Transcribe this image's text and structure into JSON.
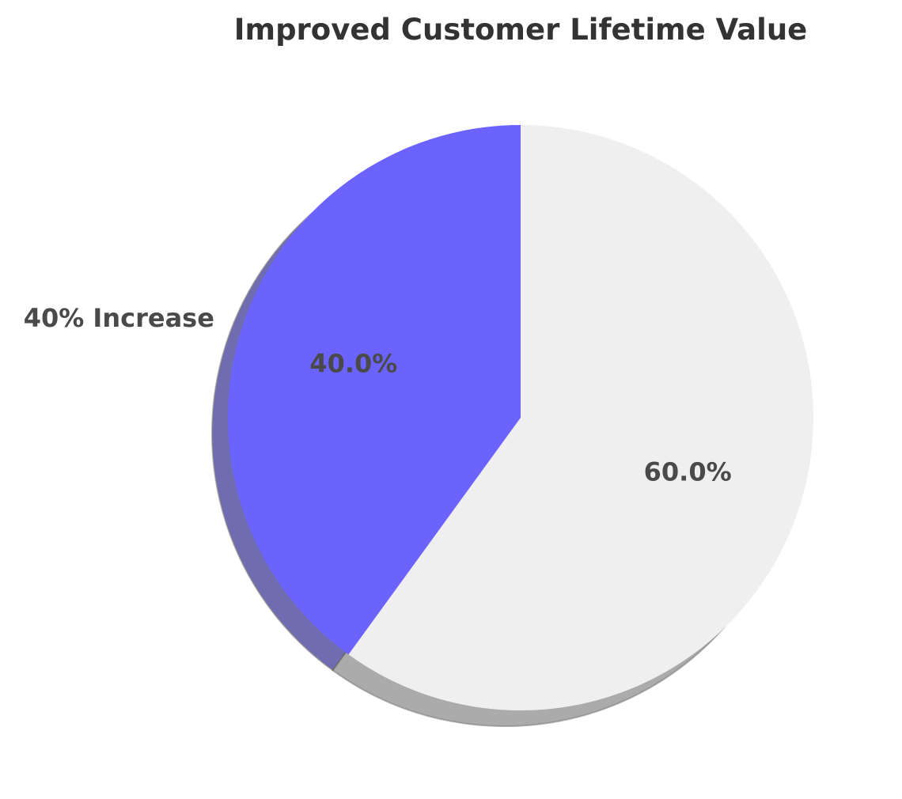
{
  "chart_data": {
    "type": "pie",
    "title": "Improved Customer Lifetime Value",
    "labels": [
      "40% Increase",
      ""
    ],
    "values": [
      40,
      60
    ],
    "percent_labels": [
      "40.0%",
      "60.0%"
    ],
    "colors": [
      "#6c63ff",
      "#efefef"
    ],
    "start_angle_deg": 90,
    "direction": "counterclockwise",
    "shadow": true
  }
}
